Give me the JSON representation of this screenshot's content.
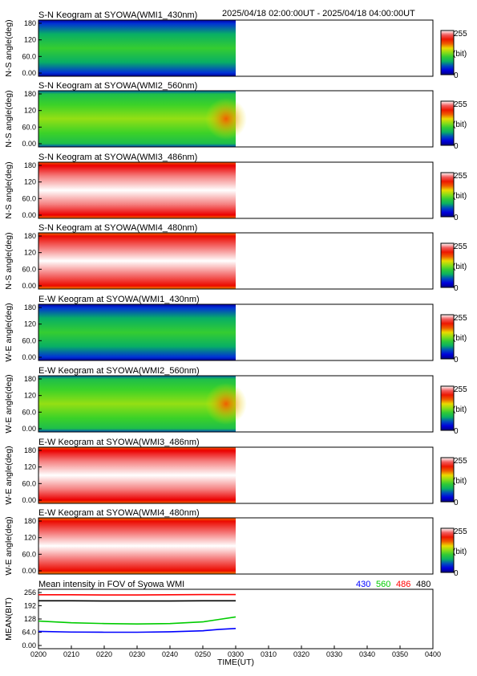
{
  "header": {
    "date_range": "2025/04/18 02:00:00UT - 2025/04/18 04:00:00UT"
  },
  "colorbar": {
    "max_label": "255",
    "mid_label": "(bit)",
    "min_label": "0"
  },
  "chart_data": [
    {
      "type": "heatmap",
      "title": "S-N Keogram at SYOWA(WMI1_430nm)",
      "ylabel": "N-S angle(deg)",
      "y_ticks": [
        "180",
        "120",
        "60.0",
        "0.00"
      ],
      "ylim": [
        0,
        180
      ],
      "data_time_range": [
        "0200",
        "0300"
      ],
      "colormap": "rainbow 0-255 bit",
      "description_levels": {
        "edges": 45,
        "center": 105
      }
    },
    {
      "type": "heatmap",
      "title": "S-N Keogram at SYOWA(WMI2_560nm)",
      "ylabel": "N-S angle(deg)",
      "y_ticks": [
        "180",
        "120",
        "60.0",
        "0.00"
      ],
      "ylim": [
        0,
        180
      ],
      "data_time_range": [
        "0200",
        "0300"
      ],
      "colormap": "rainbow 0-255 bit",
      "description_levels": {
        "edges": 90,
        "center": 130
      }
    },
    {
      "type": "heatmap",
      "title": "S-N Keogram at SYOWA(WMI3_486nm)",
      "ylabel": "N-S angle(deg)",
      "y_ticks": [
        "180",
        "120",
        "60.0",
        "0.00"
      ],
      "ylim": [
        0,
        180
      ],
      "data_time_range": [
        "0200",
        "0300"
      ],
      "colormap": "rainbow 0-255 bit",
      "description_levels": {
        "edges": 215,
        "center": 255
      }
    },
    {
      "type": "heatmap",
      "title": "S-N Keogram at SYOWA(WMI4_480nm)",
      "ylabel": "N-S angle(deg)",
      "y_ticks": [
        "180",
        "120",
        "60.0",
        "0.00"
      ],
      "ylim": [
        0,
        180
      ],
      "data_time_range": [
        "0200",
        "0300"
      ],
      "colormap": "rainbow 0-255 bit",
      "description_levels": {
        "edges": 210,
        "center": 255
      }
    },
    {
      "type": "heatmap",
      "title": "E-W Keogram at SYOWA(WMI1_430nm)",
      "ylabel": "W-E angle(deg)",
      "y_ticks": [
        "180",
        "120",
        "60.0",
        "0.00"
      ],
      "ylim": [
        0,
        180
      ],
      "data_time_range": [
        "0200",
        "0300"
      ],
      "colormap": "rainbow 0-255 bit",
      "description_levels": {
        "edges": 45,
        "center": 105
      }
    },
    {
      "type": "heatmap",
      "title": "E-W Keogram at SYOWA(WMI2_560nm)",
      "ylabel": "W-E angle(deg)",
      "y_ticks": [
        "180",
        "120",
        "60.0",
        "0.00"
      ],
      "ylim": [
        0,
        180
      ],
      "data_time_range": [
        "0200",
        "0300"
      ],
      "colormap": "rainbow 0-255 bit",
      "description_levels": {
        "edges": 90,
        "center": 130
      }
    },
    {
      "type": "heatmap",
      "title": "E-W Keogram at SYOWA(WMI3_486nm)",
      "ylabel": "W-E angle(deg)",
      "y_ticks": [
        "180",
        "120",
        "60.0",
        "0.00"
      ],
      "ylim": [
        0,
        180
      ],
      "data_time_range": [
        "0200",
        "0300"
      ],
      "colormap": "rainbow 0-255 bit",
      "description_levels": {
        "edges": 215,
        "center": 255
      }
    },
    {
      "type": "heatmap",
      "title": "E-W Keogram at SYOWA(WMI4_480nm)",
      "ylabel": "W-E angle(deg)",
      "y_ticks": [
        "180",
        "120",
        "60.0",
        "0.00"
      ],
      "ylim": [
        0,
        180
      ],
      "data_time_range": [
        "0200",
        "0300"
      ],
      "colormap": "rainbow 0-255 bit",
      "description_levels": {
        "edges": 210,
        "center": 255
      }
    },
    {
      "type": "line",
      "title": "Mean intensity in FOV of Syowa WMI",
      "ylabel": "MEAN(BIT)",
      "xlabel": "TIME(UT)",
      "ylim": [
        0,
        256
      ],
      "y_ticks": [
        "256",
        "192",
        "128",
        "64.0",
        "0.00"
      ],
      "x_ticks": [
        "0200",
        "0210",
        "0220",
        "0230",
        "0240",
        "0250",
        "0300",
        "0310",
        "0320",
        "0330",
        "0340",
        "0350",
        "0400"
      ],
      "x": [
        0,
        10,
        20,
        30,
        40,
        50,
        55,
        60
      ],
      "series": [
        {
          "name": "430",
          "color": "#0000ff",
          "values": [
            68,
            65,
            64,
            64,
            66,
            71,
            78,
            82
          ]
        },
        {
          "name": "560",
          "color": "#00cc00",
          "values": [
            118,
            110,
            106,
            104,
            106,
            114,
            126,
            138
          ]
        },
        {
          "name": "486",
          "color": "#ff0000",
          "values": [
            245,
            245,
            244,
            244,
            245,
            246,
            246,
            246
          ]
        },
        {
          "name": "480",
          "color": "#000000",
          "values": [
            216,
            216,
            215,
            215,
            215,
            216,
            216,
            216
          ]
        }
      ]
    }
  ]
}
